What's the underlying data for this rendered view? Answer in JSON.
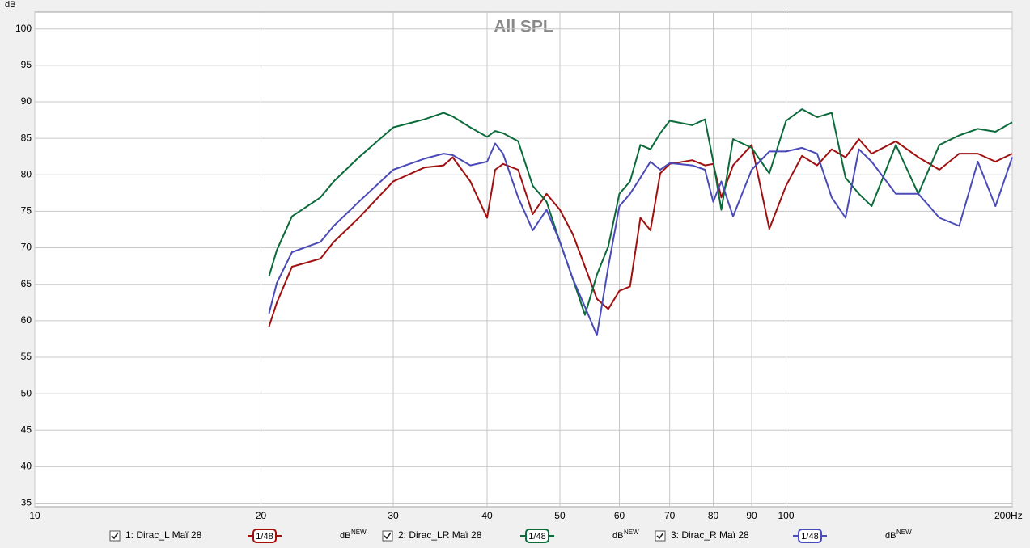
{
  "chart_data": {
    "type": "line",
    "title": "All SPL",
    "y_label": "dB",
    "log_x": true,
    "grid": true,
    "x": [
      20.5,
      21,
      22,
      24,
      25,
      27,
      30,
      33,
      35,
      36,
      38,
      40,
      41,
      42,
      44,
      46,
      48,
      50,
      52,
      54,
      56,
      58,
      60,
      62,
      64,
      66,
      68,
      70,
      75,
      78,
      80,
      82,
      85,
      90,
      95,
      100,
      105,
      110,
      115,
      120,
      125,
      130,
      140,
      150,
      160,
      170,
      180,
      190,
      200
    ],
    "series": [
      {
        "name": "1: Dirac_L Maï 28",
        "color": "#a01010",
        "smoothing": "1/48",
        "unit": "dB",
        "badge": "NEW",
        "values": [
          59.2,
          62.5,
          67.4,
          68.5,
          70.8,
          74.1,
          79.1,
          81,
          81.3,
          82.4,
          79.1,
          74.1,
          80.7,
          81.5,
          80.7,
          74.6,
          77.4,
          75.2,
          71.9,
          67.4,
          63,
          61.6,
          64.1,
          64.7,
          74.1,
          72.4,
          80.2,
          81.5,
          82,
          81.3,
          81.5,
          76.9,
          81.3,
          84.1,
          72.6,
          78.5,
          82.6,
          81.3,
          83.5,
          82.4,
          84.9,
          82.9,
          84.6,
          82.4,
          80.7,
          82.9,
          82.9,
          81.8,
          82.9
        ]
      },
      {
        "name": "2: Dirac_LR Maï 28",
        "color": "#0b6b3a",
        "smoothing": "1/48",
        "unit": "dB",
        "badge": "NEW",
        "values": [
          66.1,
          69.7,
          74.3,
          76.9,
          79.1,
          82.4,
          86.5,
          87.6,
          88.5,
          88,
          86.5,
          85.2,
          86,
          85.7,
          84.6,
          78.5,
          76.3,
          70.8,
          65.8,
          60.8,
          66.3,
          70.2,
          77.4,
          79.1,
          84.1,
          83.5,
          85.7,
          87.4,
          86.8,
          87.6,
          81.8,
          75.2,
          84.9,
          83.7,
          80.2,
          87.4,
          89,
          87.9,
          88.5,
          79.6,
          77.4,
          75.7,
          84.1,
          77.4,
          84.1,
          85.4,
          86.3,
          85.9,
          87.2
        ]
      },
      {
        "name": "3: Dirac_R Maï 28",
        "color": "#4a4ab8",
        "smoothing": "1/48",
        "unit": "dB",
        "badge": "NEW",
        "values": [
          61,
          65.2,
          69.4,
          70.8,
          73,
          76.3,
          80.7,
          82.2,
          82.9,
          82.7,
          81.3,
          81.8,
          84.3,
          82.9,
          76.9,
          72.4,
          75.2,
          70.8,
          65.8,
          61.9,
          58,
          67.4,
          75.7,
          77.4,
          79.6,
          81.8,
          80.7,
          81.6,
          81.3,
          80.7,
          76.3,
          79.1,
          74.3,
          80.7,
          83.2,
          83.2,
          83.7,
          82.9,
          76.9,
          74.1,
          83.5,
          81.8,
          77.4,
          77.4,
          74.1,
          73,
          81.8,
          75.7,
          82.4
        ]
      }
    ],
    "xlim": [
      10,
      200
    ],
    "xticks": [
      10,
      20,
      30,
      40,
      50,
      60,
      70,
      80,
      90,
      100,
      {
        "value": 200,
        "label": "200Hz"
      }
    ],
    "ylim": [
      34.5,
      102.3
    ],
    "yticks": [
      35,
      40,
      45,
      50,
      55,
      60,
      65,
      70,
      75,
      80,
      85,
      90,
      95,
      100
    ]
  }
}
